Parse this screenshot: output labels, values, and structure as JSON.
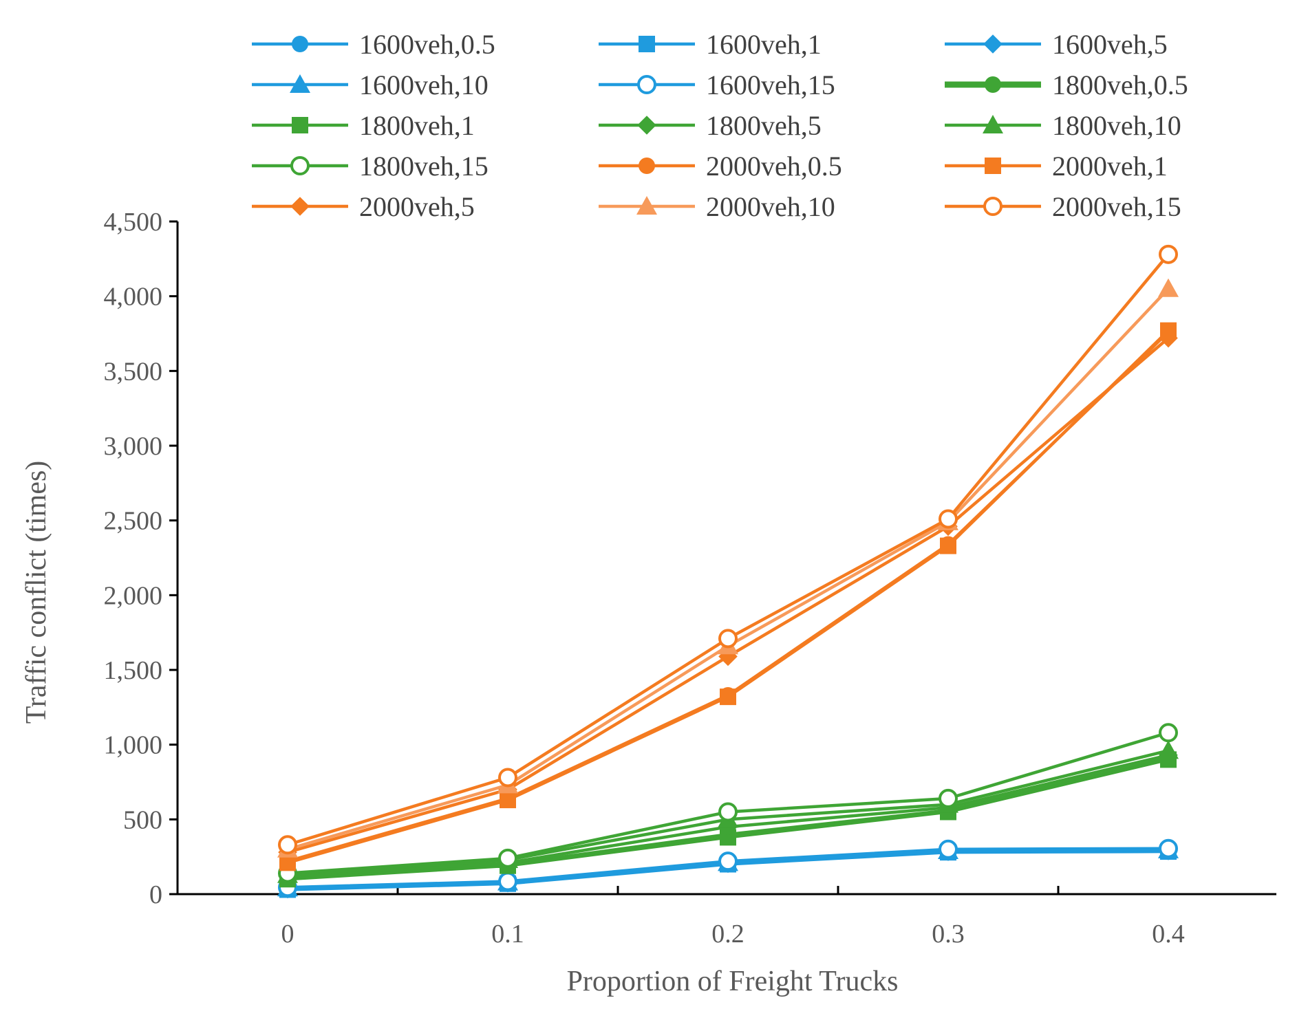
{
  "chart_data": {
    "type": "line",
    "title": "",
    "xlabel": "Proportion of Freight  Trucks",
    "ylabel": "Traffic conflict (times)",
    "x": [
      0,
      0.1,
      0.2,
      0.3,
      0.4
    ],
    "x_tick_labels": [
      "0",
      "0.1",
      "0.2",
      "0.3",
      "0.4"
    ],
    "ylim": [
      0,
      4500
    ],
    "y_ticks": [
      0,
      500,
      1000,
      1500,
      2000,
      2500,
      3000,
      3500,
      4000,
      4500
    ],
    "y_tick_labels": [
      "0",
      "500",
      "1,000",
      "1,500",
      "2,000",
      "2,500",
      "3,000",
      "3,500",
      "4,000",
      "4,500"
    ],
    "grid": false,
    "legend_position": "top",
    "series": [
      {
        "name": "1600veh,0.5",
        "color": "#1f9bde",
        "marker": "circle",
        "values": [
          40,
          80,
          210,
          290,
          290
        ]
      },
      {
        "name": "1600veh,1",
        "color": "#1f9bde",
        "marker": "square",
        "values": [
          30,
          70,
          200,
          280,
          285
        ]
      },
      {
        "name": "1600veh,5",
        "color": "#1f9bde",
        "marker": "diamond",
        "values": [
          35,
          75,
          205,
          285,
          290
        ]
      },
      {
        "name": "1600veh,10",
        "color": "#1f9bde",
        "marker": "triangle",
        "values": [
          40,
          80,
          210,
          290,
          295
        ]
      },
      {
        "name": "1600veh,15",
        "color": "#1f9bde",
        "marker": "open-circle",
        "values": [
          45,
          85,
          220,
          300,
          305
        ]
      },
      {
        "name": "1800veh,0.5",
        "color": "#3fa535",
        "marker": "circle",
        "values": [
          110,
          200,
          400,
          560,
          910
        ]
      },
      {
        "name": "1800veh,1",
        "color": "#3fa535",
        "marker": "square",
        "values": [
          100,
          190,
          380,
          550,
          900
        ]
      },
      {
        "name": "1800veh,5",
        "color": "#3fa535",
        "marker": "diamond",
        "values": [
          120,
          210,
          450,
          580,
          930
        ]
      },
      {
        "name": "1800veh,10",
        "color": "#3fa535",
        "marker": "triangle",
        "values": [
          130,
          230,
          500,
          600,
          960
        ]
      },
      {
        "name": "1800veh,15",
        "color": "#3fa535",
        "marker": "open-circle",
        "values": [
          140,
          240,
          550,
          640,
          1080
        ]
      },
      {
        "name": "2000veh,0.5",
        "color": "#f47b20",
        "marker": "circle",
        "values": [
          220,
          640,
          1330,
          2340,
          3760
        ]
      },
      {
        "name": "2000veh,1",
        "color": "#f47b20",
        "marker": "square",
        "values": [
          210,
          630,
          1320,
          2330,
          3770
        ]
      },
      {
        "name": "2000veh,5",
        "color": "#f47b20",
        "marker": "diamond",
        "values": [
          280,
          700,
          1590,
          2460,
          3720
        ]
      },
      {
        "name": "2000veh,10",
        "color": "#f79a5a",
        "marker": "triangle",
        "values": [
          300,
          730,
          1660,
          2490,
          4050
        ]
      },
      {
        "name": "2000veh,15",
        "color": "#f47b20",
        "marker": "open-circle",
        "values": [
          330,
          780,
          1710,
          2510,
          4280
        ]
      }
    ]
  }
}
